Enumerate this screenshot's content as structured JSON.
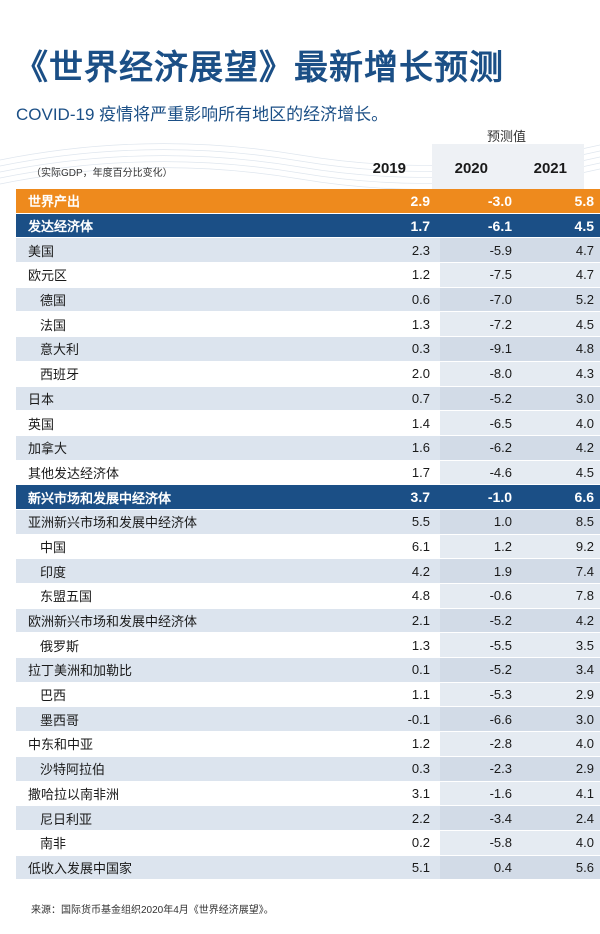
{
  "title": "《世界经济展望》最新增长预测",
  "subtitle": "COVID-19 疫情将严重影响所有地区的经济增长。",
  "forecast_label": "预测值",
  "unit_label": "（实际GDP，年度百分比变化）",
  "source": "来源：国际货币基金组织2020年4月《世界经济展望》。",
  "colors": {
    "title": "#1b4f86",
    "orange_row": "#ee8a1d",
    "blue_row": "#1b4f86",
    "stripe": "#dce4ee"
  },
  "chart_data": {
    "type": "table",
    "columns": [
      "2019",
      "2020",
      "2021"
    ],
    "rows": [
      {
        "name": "世界产出",
        "values": [
          "2.9",
          "-3.0",
          "5.8"
        ],
        "style": "orange"
      },
      {
        "name": "发达经济体",
        "values": [
          "1.7",
          "-6.1",
          "4.5"
        ],
        "style": "blue"
      },
      {
        "name": "美国",
        "values": [
          "2.3",
          "-5.9",
          "4.7"
        ],
        "style": "shaded"
      },
      {
        "name": "欧元区",
        "values": [
          "1.2",
          "-7.5",
          "4.7"
        ],
        "style": "plain"
      },
      {
        "name": "德国",
        "values": [
          "0.6",
          "-7.0",
          "5.2"
        ],
        "style": "shaded",
        "indent": true
      },
      {
        "name": "法国",
        "values": [
          "1.3",
          "-7.2",
          "4.5"
        ],
        "style": "plain",
        "indent": true
      },
      {
        "name": "意大利",
        "values": [
          "0.3",
          "-9.1",
          "4.8"
        ],
        "style": "shaded",
        "indent": true
      },
      {
        "name": "西班牙",
        "values": [
          "2.0",
          "-8.0",
          "4.3"
        ],
        "style": "plain",
        "indent": true
      },
      {
        "name": "日本",
        "values": [
          "0.7",
          "-5.2",
          "3.0"
        ],
        "style": "shaded"
      },
      {
        "name": "英国",
        "values": [
          "1.4",
          "-6.5",
          "4.0"
        ],
        "style": "plain"
      },
      {
        "name": "加拿大",
        "values": [
          "1.6",
          "-6.2",
          "4.2"
        ],
        "style": "shaded"
      },
      {
        "name": "其他发达经济体",
        "values": [
          "1.7",
          "-4.6",
          "4.5"
        ],
        "style": "plain"
      },
      {
        "name": "新兴市场和发展中经济体",
        "values": [
          "3.7",
          "-1.0",
          "6.6"
        ],
        "style": "blue"
      },
      {
        "name": "亚洲新兴市场和发展中经济体",
        "values": [
          "5.5",
          "1.0",
          "8.5"
        ],
        "style": "shaded"
      },
      {
        "name": "中国",
        "values": [
          "6.1",
          "1.2",
          "9.2"
        ],
        "style": "plain",
        "indent": true
      },
      {
        "name": "印度",
        "values": [
          "4.2",
          "1.9",
          "7.4"
        ],
        "style": "shaded",
        "indent": true
      },
      {
        "name": "东盟五国",
        "values": [
          "4.8",
          "-0.6",
          "7.8"
        ],
        "style": "plain",
        "indent": true
      },
      {
        "name": "欧洲新兴市场和发展中经济体",
        "values": [
          "2.1",
          "-5.2",
          "4.2"
        ],
        "style": "shaded"
      },
      {
        "name": "俄罗斯",
        "values": [
          "1.3",
          "-5.5",
          "3.5"
        ],
        "style": "plain",
        "indent": true
      },
      {
        "name": "拉丁美洲和加勒比",
        "values": [
          "0.1",
          "-5.2",
          "3.4"
        ],
        "style": "shaded"
      },
      {
        "name": "巴西",
        "values": [
          "1.1",
          "-5.3",
          "2.9"
        ],
        "style": "plain",
        "indent": true
      },
      {
        "name": "墨西哥",
        "values": [
          "-0.1",
          "-6.6",
          "3.0"
        ],
        "style": "shaded",
        "indent": true
      },
      {
        "name": "中东和中亚",
        "values": [
          "1.2",
          "-2.8",
          "4.0"
        ],
        "style": "plain"
      },
      {
        "name": "沙特阿拉伯",
        "values": [
          "0.3",
          "-2.3",
          "2.9"
        ],
        "style": "shaded",
        "indent": true
      },
      {
        "name": "撒哈拉以南非洲",
        "values": [
          "3.1",
          "-1.6",
          "4.1"
        ],
        "style": "plain"
      },
      {
        "name": "尼日利亚",
        "values": [
          "2.2",
          "-3.4",
          "2.4"
        ],
        "style": "shaded",
        "indent": true
      },
      {
        "name": "南非",
        "values": [
          "0.2",
          "-5.8",
          "4.0"
        ],
        "style": "plain",
        "indent": true
      },
      {
        "name": "低收入发展中国家",
        "values": [
          "5.1",
          "0.4",
          "5.6"
        ],
        "style": "shaded"
      }
    ]
  }
}
